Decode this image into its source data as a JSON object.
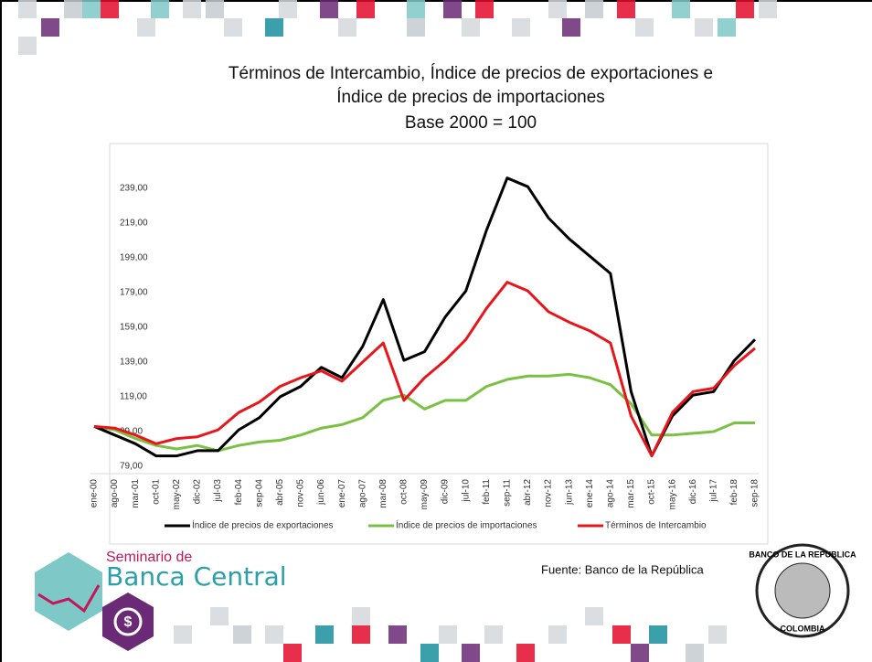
{
  "chart_data": {
    "type": "line",
    "title": "Términos de Intercambio, Índice de precios de exportaciones e Índice de precios de importaciones",
    "subtitle": "Base 2000 = 100",
    "categories": [
      "ene-00",
      "ago-00",
      "mar-01",
      "oct-01",
      "may-02",
      "dic-02",
      "jul-03",
      "feb-04",
      "sep-04",
      "abr-05",
      "nov-05",
      "jun-06",
      "ene-07",
      "ago-07",
      "mar-08",
      "oct-08",
      "may-09",
      "dic-09",
      "jul-10",
      "feb-11",
      "sep-11",
      "abr-12",
      "nov-12",
      "jun-13",
      "ene-14",
      "ago-14",
      "mar-15",
      "oct-15",
      "may-16",
      "dic-16",
      "jul-17",
      "feb-18",
      "sep-18"
    ],
    "series": [
      {
        "name": "Índice de precios de exportaciones",
        "color": "#000000",
        "values": [
          102,
          97,
          92,
          85,
          85,
          88,
          88,
          100,
          107,
          119,
          125,
          136,
          130,
          148,
          175,
          140,
          145,
          165,
          180,
          215,
          245,
          240,
          222,
          210,
          200,
          190,
          122,
          85,
          108,
          120,
          122,
          140,
          152
        ]
      },
      {
        "name": "Índice de precios de importaciones",
        "color": "#7ac143",
        "values": [
          102,
          100,
          95,
          91,
          89,
          91,
          88,
          91,
          93,
          94,
          97,
          101,
          103,
          107,
          117,
          120,
          112,
          117,
          117,
          125,
          129,
          131,
          131,
          132,
          130,
          126,
          115,
          97,
          97,
          98,
          99,
          104,
          104
        ]
      },
      {
        "name": "Términos de Intercambio",
        "color": "#e8161b",
        "values": [
          102,
          101,
          97,
          92,
          95,
          96,
          100,
          110,
          116,
          125,
          130,
          134,
          128,
          139,
          150,
          117,
          130,
          140,
          152,
          170,
          185,
          180,
          168,
          162,
          157,
          150,
          108,
          85,
          110,
          122,
          124,
          137,
          147
        ]
      }
    ],
    "ylim": [
      79,
      258
    ],
    "yticks": [
      {
        "value": 79,
        "label": "79,00"
      },
      {
        "value": 99,
        "label": "99,00"
      },
      {
        "value": 119,
        "label": "119,00"
      },
      {
        "value": 139,
        "label": "139,00"
      },
      {
        "value": 159,
        "label": "159,00"
      },
      {
        "value": 179,
        "label": "179,00"
      },
      {
        "value": 199,
        "label": "199,00"
      },
      {
        "value": 219,
        "label": "219,00"
      },
      {
        "value": 239,
        "label": "239,00"
      }
    ],
    "grid": false,
    "legend": "bottom"
  },
  "source": "Fuente: Banco de la República",
  "logo": {
    "line1": "Seminario de",
    "line2": "Banca Central"
  },
  "seal": {
    "top": "BANCO DE LA REPUBLICA",
    "bottom": "COLOMBIA"
  }
}
